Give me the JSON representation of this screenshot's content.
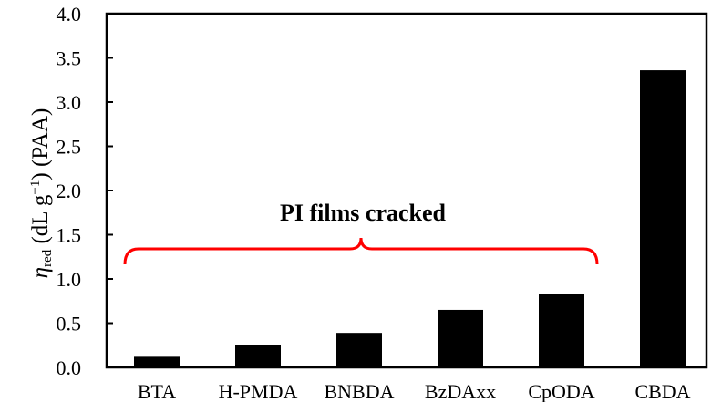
{
  "chart_data": {
    "type": "bar",
    "title": "",
    "xlabel": "",
    "ylabel": {
      "symbol": "η",
      "subscript": "red",
      "units": " (dL g",
      "superscript": "−1",
      "suffix": ") (PAA)"
    },
    "categories": [
      "BTA",
      "H-PMDA",
      "BNBDA",
      "BzDAxx",
      "CpODA",
      "CBDA"
    ],
    "values": [
      0.12,
      0.25,
      0.39,
      0.65,
      0.83,
      3.36
    ],
    "ylim": [
      0,
      4.0
    ],
    "yticks": [
      "0.0",
      "0.5",
      "1.0",
      "1.5",
      "2.0",
      "2.5",
      "3.0",
      "3.5",
      "4.0"
    ],
    "grid": false,
    "bar_color": "#000000",
    "annotation": {
      "text": "PI films cracked",
      "color": "#ff0000",
      "spans": [
        "BTA",
        "CpODA"
      ]
    }
  }
}
